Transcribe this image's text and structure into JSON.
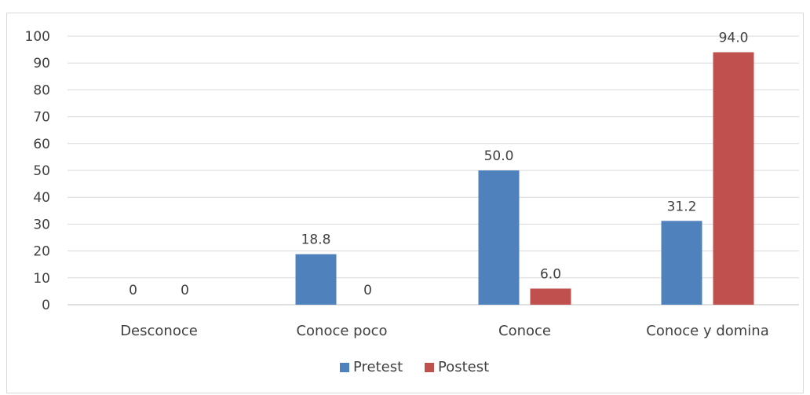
{
  "chart_data": {
    "type": "bar",
    "title": "",
    "xlabel": "",
    "ylabel": "",
    "categories": [
      "Desconoce",
      "Conoce poco",
      "Conoce",
      "Conoce y domina"
    ],
    "series": [
      {
        "name": "Pretest",
        "values": [
          0,
          18.8,
          50.0,
          31.2
        ],
        "labels": [
          "0",
          "18.8",
          "50.0",
          "31.2"
        ],
        "color": "#4f81bd"
      },
      {
        "name": "Postest",
        "values": [
          0,
          0,
          6.0,
          94.0
        ],
        "labels": [
          "0",
          "0",
          "6.0",
          "94.0"
        ],
        "color": "#c0504d"
      }
    ],
    "ylim": [
      0,
      100
    ],
    "yticks": [
      0,
      10,
      20,
      30,
      40,
      50,
      60,
      70,
      80,
      90,
      100
    ],
    "grid": true,
    "legend_position": "bottom"
  }
}
